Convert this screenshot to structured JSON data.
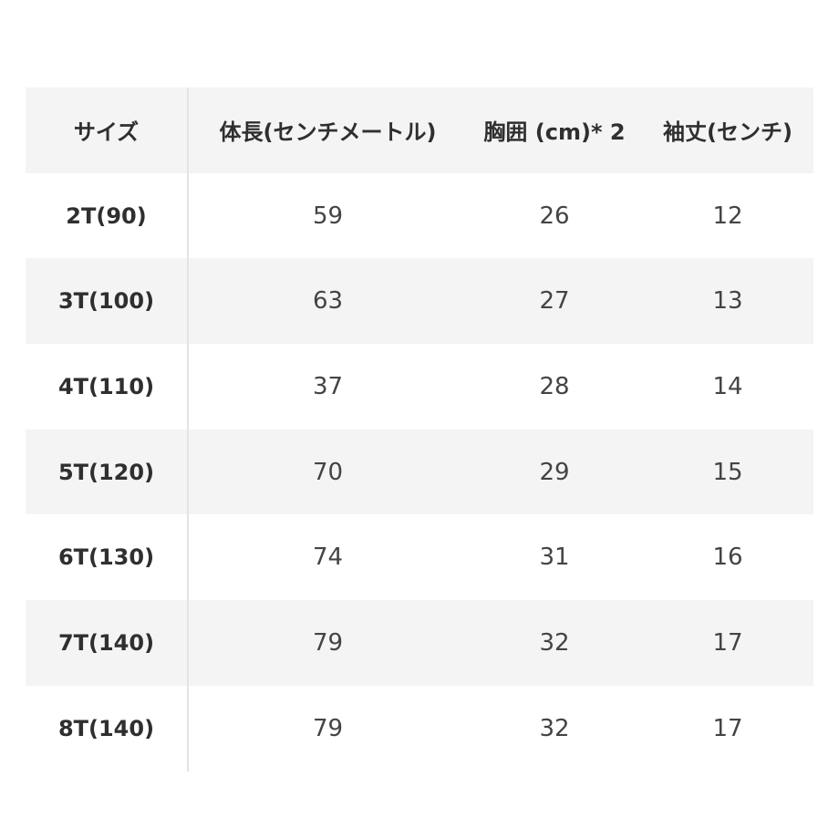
{
  "table": {
    "headers": [
      "サイズ",
      "体長(センチメートル)",
      "胸囲 (cm)* 2",
      "袖丈(センチ)"
    ],
    "rows": [
      [
        "2T(90)",
        "59",
        "26",
        "12"
      ],
      [
        "3T(100)",
        "63",
        "27",
        "13"
      ],
      [
        "4T(110)",
        "37",
        "28",
        "14"
      ],
      [
        "5T(120)",
        "70",
        "29",
        "15"
      ],
      [
        "6T(130)",
        "74",
        "31",
        "16"
      ],
      [
        "7T(140)",
        "79",
        "32",
        "17"
      ],
      [
        "8T(140)",
        "79",
        "32",
        "17"
      ]
    ]
  },
  "colors": {
    "shaded_row": "#f4f4f4",
    "divider": "#e4e4e4",
    "text": "#3a3a3a"
  }
}
